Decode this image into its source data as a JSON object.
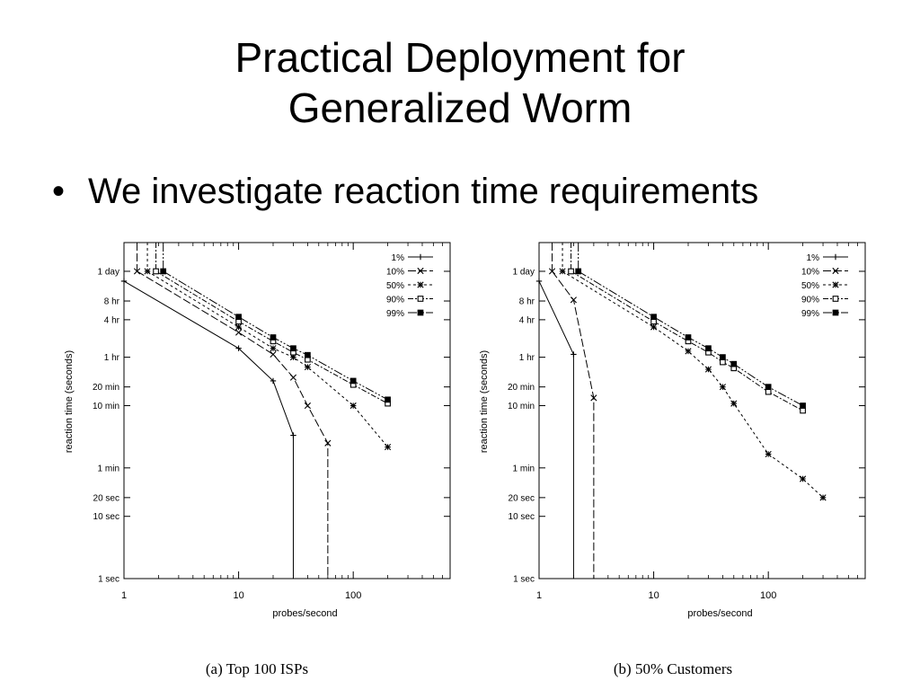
{
  "slide": {
    "title_line1": "Practical Deployment for",
    "title_line2": "Generalized Worm",
    "bullet": "We investigate reaction time requirements",
    "bullet_marker": "•"
  },
  "chart_data": [
    {
      "type": "line",
      "caption": "(a) Top 100 ISPs",
      "xlabel": "probes/second",
      "ylabel": "reaction time (seconds)",
      "x_scale": "log",
      "y_scale": "log",
      "xlim": [
        1,
        700
      ],
      "ylim": [
        1,
        250000
      ],
      "x_ticks": [
        {
          "value": 1,
          "label": "1"
        },
        {
          "value": 10,
          "label": "10"
        },
        {
          "value": 100,
          "label": "100"
        }
      ],
      "y_ticks": [
        {
          "value": 1,
          "label": "1 sec"
        },
        {
          "value": 10,
          "label": "10 sec"
        },
        {
          "value": 20,
          "label": "20 sec"
        },
        {
          "value": 60,
          "label": "1 min"
        },
        {
          "value": 600,
          "label": "10 min"
        },
        {
          "value": 1200,
          "label": "20 min"
        },
        {
          "value": 3600,
          "label": "1 hr"
        },
        {
          "value": 14400,
          "label": "4 hr"
        },
        {
          "value": 28800,
          "label": "8 hr"
        },
        {
          "value": 86400,
          "label": "1 day"
        }
      ],
      "grid": false,
      "legend_position": "top-right",
      "series": [
        {
          "name": "1%",
          "marker": "plus",
          "dash": "",
          "x": [
            1,
            10,
            20,
            30,
            30
          ],
          "y": [
            60000,
            5000,
            1500,
            200,
            1
          ]
        },
        {
          "name": "10%",
          "marker": "x",
          "dash": "9 3",
          "x": [
            1.3,
            10,
            20,
            30,
            40,
            60,
            60
          ],
          "y": [
            86400,
            9000,
            4000,
            1700,
            600,
            150,
            1
          ]
        },
        {
          "name": "50%",
          "marker": "star",
          "dash": "3 3",
          "x": [
            1.6,
            10,
            20,
            30,
            40,
            100,
            200
          ],
          "y": [
            86400,
            11000,
            5000,
            3600,
            2500,
            600,
            130
          ]
        },
        {
          "name": "90%",
          "marker": "square-open",
          "dash": "6 2 2 2",
          "x": [
            1.9,
            10,
            20,
            30,
            40,
            100,
            200
          ],
          "y": [
            86400,
            13500,
            6500,
            4300,
            3300,
            1300,
            650
          ]
        },
        {
          "name": "99%",
          "marker": "square-filled",
          "dash": "10 2 2 2 2 2",
          "x": [
            2.2,
            10,
            20,
            30,
            40,
            100,
            200
          ],
          "y": [
            86400,
            16000,
            7500,
            5000,
            3900,
            1500,
            750
          ]
        }
      ]
    },
    {
      "type": "line",
      "caption": "(b) 50% Customers",
      "xlabel": "probes/second",
      "ylabel": "reaction time (seconds)",
      "x_scale": "log",
      "y_scale": "log",
      "xlim": [
        1,
        700
      ],
      "ylim": [
        1,
        250000
      ],
      "x_ticks": [
        {
          "value": 1,
          "label": "1"
        },
        {
          "value": 10,
          "label": "10"
        },
        {
          "value": 100,
          "label": "100"
        }
      ],
      "y_ticks": [
        {
          "value": 1,
          "label": "1 sec"
        },
        {
          "value": 10,
          "label": "10 sec"
        },
        {
          "value": 20,
          "label": "20 sec"
        },
        {
          "value": 60,
          "label": "1 min"
        },
        {
          "value": 600,
          "label": "10 min"
        },
        {
          "value": 1200,
          "label": "20 min"
        },
        {
          "value": 3600,
          "label": "1 hr"
        },
        {
          "value": 14400,
          "label": "4 hr"
        },
        {
          "value": 28800,
          "label": "8 hr"
        },
        {
          "value": 86400,
          "label": "1 day"
        }
      ],
      "grid": false,
      "legend_position": "top-right",
      "series": [
        {
          "name": "1%",
          "marker": "plus",
          "dash": "",
          "x": [
            1,
            2,
            2
          ],
          "y": [
            60000,
            4000,
            1
          ]
        },
        {
          "name": "10%",
          "marker": "x",
          "dash": "9 3",
          "x": [
            1.3,
            2,
            3,
            3
          ],
          "y": [
            86400,
            30000,
            800,
            1
          ]
        },
        {
          "name": "50%",
          "marker": "star",
          "dash": "3 3",
          "x": [
            1.6,
            10,
            20,
            30,
            40,
            50,
            100,
            200,
            300
          ],
          "y": [
            86400,
            11000,
            4500,
            2300,
            1200,
            650,
            100,
            40,
            20
          ]
        },
        {
          "name": "90%",
          "marker": "square-open",
          "dash": "6 2 2 2",
          "x": [
            1.9,
            10,
            20,
            30,
            40,
            50,
            100,
            200
          ],
          "y": [
            86400,
            13500,
            6500,
            4300,
            3000,
            2400,
            1000,
            500
          ]
        },
        {
          "name": "99%",
          "marker": "square-filled",
          "dash": "10 2 2 2 2 2",
          "x": [
            2.2,
            10,
            20,
            30,
            40,
            50,
            100,
            200
          ],
          "y": [
            86400,
            16000,
            7500,
            5000,
            3600,
            2800,
            1200,
            600
          ]
        }
      ]
    }
  ]
}
